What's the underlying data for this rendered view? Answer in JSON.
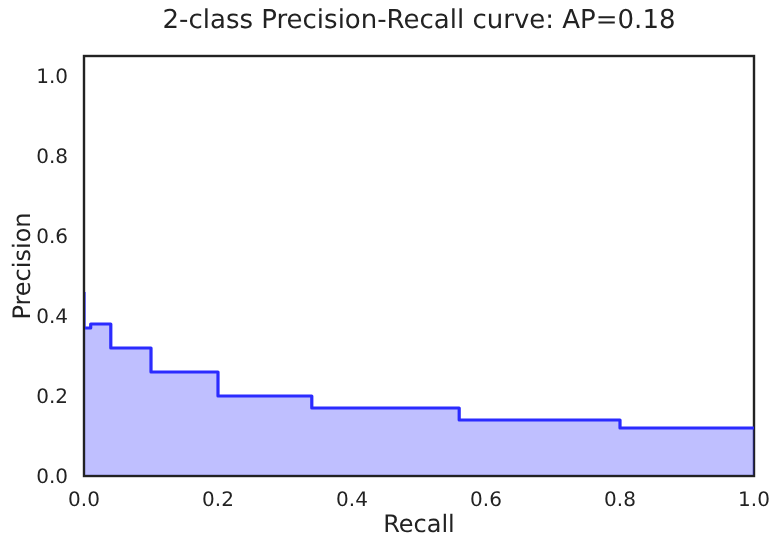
{
  "chart_data": {
    "type": "area",
    "title": "2-class Precision-Recall curve: AP=0.18",
    "xlabel": "Recall",
    "ylabel": "Precision",
    "x": [
      0,
      0,
      0.01,
      0.01,
      0.04,
      0.04,
      0.1,
      0.1,
      0.2,
      0.2,
      0.34,
      0.34,
      0.56,
      0.56,
      0.8,
      0.8,
      1.0
    ],
    "series": [
      {
        "color": "#2b2bff",
        "values": [
          0.46,
          0.37,
          0.37,
          0.38,
          0.38,
          0.32,
          0.32,
          0.26,
          0.26,
          0.2,
          0.2,
          0.17,
          0.17,
          0.14,
          0.14,
          0.12,
          0.12
        ]
      }
    ],
    "xlim": [
      0,
      1
    ],
    "ylim": [
      0,
      1.05
    ],
    "xticks": [
      {
        "value": 0,
        "label": "0.0"
      },
      {
        "value": 0.2,
        "label": "0.2"
      },
      {
        "value": 0.4,
        "label": "0.4"
      },
      {
        "value": 0.6,
        "label": "0.6"
      },
      {
        "value": 0.8,
        "label": "0.8"
      },
      {
        "value": 1,
        "label": "1.0"
      }
    ],
    "yticks": [
      {
        "value": 0,
        "label": "0.0"
      },
      {
        "value": 0.2,
        "label": "0.2"
      },
      {
        "value": 0.4,
        "label": "0.4"
      },
      {
        "value": 0.6,
        "label": "0.6"
      },
      {
        "value": 0.8,
        "label": "0.8"
      },
      {
        "value": 1,
        "label": "1.0"
      }
    ],
    "grid": false,
    "legend": false
  }
}
